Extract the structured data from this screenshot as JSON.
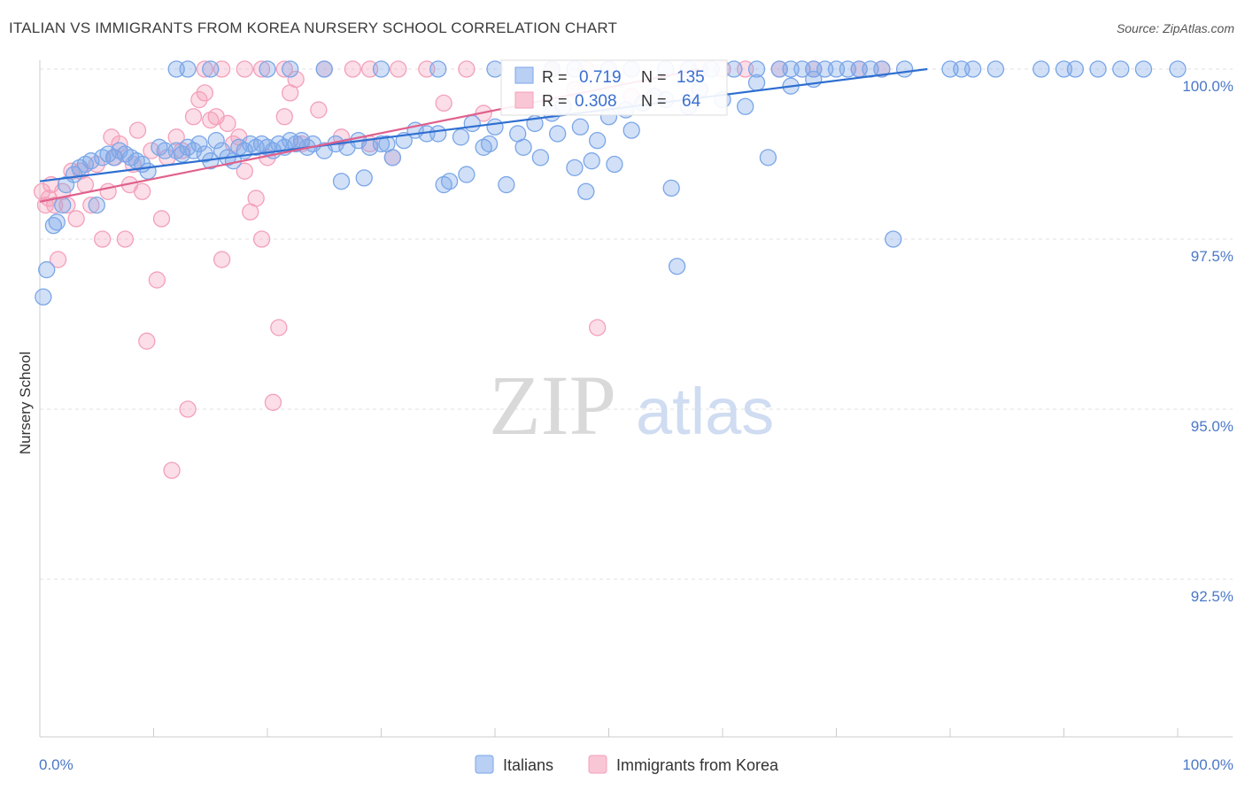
{
  "title": "ITALIAN VS IMMIGRANTS FROM KOREA NURSERY SCHOOL CORRELATION CHART",
  "source": "Source: ZipAtlas.com",
  "watermark": {
    "zip": "ZIP",
    "atlas": "atlas"
  },
  "chart_data": {
    "type": "scatter",
    "ylabel": "Nursery School",
    "xlim": [
      0,
      100
    ],
    "ylim": [
      90.0,
      100.1
    ],
    "x_tick_labels": {
      "left": "0.0%",
      "right": "100.0%"
    },
    "y_ticks": [
      {
        "value": 100.0,
        "label": "100.0%"
      },
      {
        "value": 97.5,
        "label": "97.5%"
      },
      {
        "value": 95.0,
        "label": "95.0%"
      },
      {
        "value": 92.5,
        "label": "92.5%"
      }
    ],
    "grid": true,
    "legend": {
      "placement": "top-center",
      "entries": [
        {
          "r_label": "R =",
          "r_value": "0.719",
          "n_label": "N =",
          "n_value": "135",
          "color": "#7aa6e8"
        },
        {
          "r_label": "R =",
          "r_value": "0.308",
          "n_label": "N =",
          "n_value": "64",
          "color": "#f4a0bb"
        }
      ]
    },
    "series": [
      {
        "name": "Italians",
        "color": "#7aa6e8",
        "line_color": "#2f6fd0",
        "trend": {
          "x": [
            0,
            78
          ],
          "y": [
            98.35,
            100.0
          ]
        },
        "points": [
          [
            0.3,
            96.65
          ],
          [
            0.6,
            97.05
          ],
          [
            1.2,
            97.7
          ],
          [
            1.5,
            97.75
          ],
          [
            2.0,
            98.0
          ],
          [
            2.3,
            98.3
          ],
          [
            3.0,
            98.45
          ],
          [
            3.5,
            98.55
          ],
          [
            4.0,
            98.6
          ],
          [
            4.5,
            98.65
          ],
          [
            5.0,
            98.0
          ],
          [
            5.5,
            98.7
          ],
          [
            6.0,
            98.75
          ],
          [
            6.5,
            98.7
          ],
          [
            7.0,
            98.8
          ],
          [
            7.5,
            98.75
          ],
          [
            8.0,
            98.7
          ],
          [
            8.5,
            98.65
          ],
          [
            9.0,
            98.6
          ],
          [
            9.5,
            98.5
          ],
          [
            10.5,
            98.85
          ],
          [
            11.0,
            98.8
          ],
          [
            12.0,
            98.8
          ],
          [
            12.5,
            98.75
          ],
          [
            13.0,
            98.85
          ],
          [
            13.5,
            98.8
          ],
          [
            14.0,
            98.9
          ],
          [
            14.5,
            98.75
          ],
          [
            15.0,
            98.65
          ],
          [
            15.5,
            98.95
          ],
          [
            16.0,
            98.8
          ],
          [
            16.5,
            98.7
          ],
          [
            17.0,
            98.65
          ],
          [
            17.5,
            98.85
          ],
          [
            18.0,
            98.8
          ],
          [
            18.5,
            98.9
          ],
          [
            19.0,
            98.85
          ],
          [
            19.5,
            98.9
          ],
          [
            20.0,
            98.85
          ],
          [
            20.5,
            98.8
          ],
          [
            21.0,
            98.9
          ],
          [
            21.5,
            98.85
          ],
          [
            22.0,
            98.95
          ],
          [
            22.5,
            98.9
          ],
          [
            23.0,
            98.95
          ],
          [
            23.5,
            98.85
          ],
          [
            24.0,
            98.9
          ],
          [
            25.0,
            98.8
          ],
          [
            26.0,
            98.9
          ],
          [
            26.5,
            98.35
          ],
          [
            27.0,
            98.85
          ],
          [
            28.0,
            98.95
          ],
          [
            28.5,
            98.4
          ],
          [
            29.0,
            98.85
          ],
          [
            30.0,
            98.9
          ],
          [
            30.5,
            98.9
          ],
          [
            31.0,
            98.7
          ],
          [
            32.0,
            98.95
          ],
          [
            33.0,
            99.1
          ],
          [
            34.0,
            99.05
          ],
          [
            35.0,
            99.05
          ],
          [
            35.5,
            98.3
          ],
          [
            36.0,
            98.35
          ],
          [
            37.0,
            99.0
          ],
          [
            37.5,
            98.45
          ],
          [
            38.0,
            99.2
          ],
          [
            39.0,
            98.85
          ],
          [
            39.5,
            98.9
          ],
          [
            40.0,
            99.15
          ],
          [
            41.0,
            98.3
          ],
          [
            42.0,
            99.05
          ],
          [
            42.5,
            98.85
          ],
          [
            43.5,
            99.2
          ],
          [
            44.0,
            98.7
          ],
          [
            45.0,
            99.35
          ],
          [
            45.5,
            99.05
          ],
          [
            46.0,
            99.45
          ],
          [
            47.0,
            98.55
          ],
          [
            47.5,
            99.15
          ],
          [
            48.0,
            98.2
          ],
          [
            48.5,
            98.65
          ],
          [
            49.0,
            98.95
          ],
          [
            50.0,
            99.3
          ],
          [
            50.5,
            98.6
          ],
          [
            51.5,
            99.4
          ],
          [
            52.0,
            99.1
          ],
          [
            53.0,
            99.5
          ],
          [
            54.0,
            99.6
          ],
          [
            55.0,
            99.55
          ],
          [
            55.5,
            98.25
          ],
          [
            56.0,
            97.1
          ],
          [
            57.0,
            99.45
          ],
          [
            58.0,
            99.7
          ],
          [
            60.0,
            99.55
          ],
          [
            62.0,
            99.45
          ],
          [
            63.0,
            99.8
          ],
          [
            64.0,
            98.7
          ],
          [
            66.0,
            99.75
          ],
          [
            68.0,
            99.85
          ],
          [
            75.0,
            97.5
          ],
          [
            12.0,
            100.0
          ],
          [
            13.0,
            100.0
          ],
          [
            15.0,
            100.0
          ],
          [
            20.0,
            100.0
          ],
          [
            22.0,
            100.0
          ],
          [
            25.0,
            100.0
          ],
          [
            30.0,
            100.0
          ],
          [
            35.0,
            100.0
          ],
          [
            40.0,
            100.0
          ],
          [
            45.0,
            100.0
          ],
          [
            47.0,
            100.0
          ],
          [
            50.0,
            100.0
          ],
          [
            52.0,
            100.0
          ],
          [
            55.0,
            100.0
          ],
          [
            57.0,
            100.0
          ],
          [
            59.0,
            100.0
          ],
          [
            61.0,
            100.0
          ],
          [
            63.0,
            100.0
          ],
          [
            65.0,
            100.0
          ],
          [
            66.0,
            100.0
          ],
          [
            67.0,
            100.0
          ],
          [
            68.0,
            100.0
          ],
          [
            69.0,
            100.0
          ],
          [
            70.0,
            100.0
          ],
          [
            71.0,
            100.0
          ],
          [
            72.0,
            100.0
          ],
          [
            73.0,
            100.0
          ],
          [
            74.0,
            100.0
          ],
          [
            76.0,
            100.0
          ],
          [
            80.0,
            100.0
          ],
          [
            81.0,
            100.0
          ],
          [
            82.0,
            100.0
          ],
          [
            84.0,
            100.0
          ],
          [
            88.0,
            100.0
          ],
          [
            90.0,
            100.0
          ],
          [
            91.0,
            100.0
          ],
          [
            93.0,
            100.0
          ],
          [
            95.0,
            100.0
          ],
          [
            97.0,
            100.0
          ],
          [
            100.0,
            100.0
          ]
        ]
      },
      {
        "name": "Immigrants from Korea",
        "color": "#f4a0bb",
        "line_color": "#e0608c",
        "trend": {
          "x": [
            0,
            58
          ],
          "y": [
            98.05,
            100.0
          ]
        },
        "points": [
          [
            0.2,
            98.2
          ],
          [
            0.5,
            98.0
          ],
          [
            0.8,
            98.1
          ],
          [
            1.0,
            98.3
          ],
          [
            1.3,
            98.0
          ],
          [
            1.6,
            97.2
          ],
          [
            2.0,
            98.2
          ],
          [
            2.4,
            98.0
          ],
          [
            2.8,
            98.5
          ],
          [
            3.2,
            97.8
          ],
          [
            3.6,
            98.5
          ],
          [
            4.0,
            98.3
          ],
          [
            4.5,
            98.0
          ],
          [
            5.0,
            98.6
          ],
          [
            5.5,
            97.5
          ],
          [
            6.0,
            98.2
          ],
          [
            6.3,
            99.0
          ],
          [
            6.6,
            98.7
          ],
          [
            7.0,
            98.9
          ],
          [
            7.5,
            97.5
          ],
          [
            7.9,
            98.3
          ],
          [
            8.2,
            98.6
          ],
          [
            8.6,
            99.1
          ],
          [
            9.0,
            98.2
          ],
          [
            9.4,
            96.0
          ],
          [
            9.8,
            98.8
          ],
          [
            10.3,
            96.9
          ],
          [
            10.7,
            97.8
          ],
          [
            11.2,
            98.7
          ],
          [
            11.6,
            94.1
          ],
          [
            12.0,
            99.0
          ],
          [
            12.5,
            98.8
          ],
          [
            13.0,
            95.0
          ],
          [
            13.5,
            99.3
          ],
          [
            14.0,
            99.55
          ],
          [
            14.5,
            99.65
          ],
          [
            15.0,
            99.25
          ],
          [
            15.5,
            99.3
          ],
          [
            16.0,
            97.2
          ],
          [
            16.5,
            99.2
          ],
          [
            17.0,
            98.9
          ],
          [
            17.5,
            99.0
          ],
          [
            18.0,
            98.5
          ],
          [
            18.5,
            97.9
          ],
          [
            19.0,
            98.1
          ],
          [
            19.5,
            97.5
          ],
          [
            20.0,
            98.7
          ],
          [
            20.5,
            95.1
          ],
          [
            21.0,
            96.2
          ],
          [
            21.5,
            99.3
          ],
          [
            22.0,
            99.65
          ],
          [
            22.5,
            99.85
          ],
          [
            23.0,
            98.9
          ],
          [
            24.5,
            99.4
          ],
          [
            26.5,
            99.0
          ],
          [
            29.0,
            98.9
          ],
          [
            31.0,
            98.7
          ],
          [
            35.5,
            99.5
          ],
          [
            39.0,
            99.35
          ],
          [
            45.0,
            100.0
          ],
          [
            47.0,
            99.7
          ],
          [
            49.0,
            96.2
          ],
          [
            52.0,
            99.6
          ],
          [
            58.0,
            100.0
          ]
        ]
      }
    ],
    "pink_top_row_x": [
      14.5,
      16.0,
      18.0,
      19.5,
      21.5,
      25.0,
      27.5,
      29.0,
      31.5,
      34.0,
      37.5,
      48.0,
      60.0,
      62.0,
      65.0,
      68.0,
      72.0,
      74.0
    ]
  },
  "bottom_legend": [
    {
      "label": "Italians",
      "color": "#7aa6e8"
    },
    {
      "label": "Immigrants from Korea",
      "color": "#f4a0bb"
    }
  ]
}
